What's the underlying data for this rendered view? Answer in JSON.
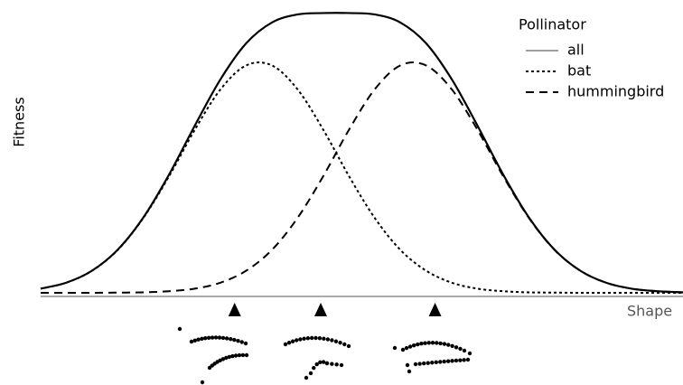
{
  "chart_data": {
    "type": "line",
    "y_label": "Fitness",
    "x_label": "Shape",
    "legend_title": "Pollinator",
    "x": [
      0,
      4,
      8,
      12,
      16,
      20,
      24,
      28,
      32,
      36,
      40,
      44,
      48,
      52,
      56,
      60,
      64,
      68,
      72,
      76,
      80,
      84,
      88,
      92,
      96,
      100
    ],
    "series": [
      {
        "name": "all",
        "color": "#000000",
        "dash": "solid",
        "values": [
          0.018,
          0.044,
          0.096,
          0.187,
          0.327,
          0.513,
          0.725,
          0.926,
          1.082,
          1.172,
          1.207,
          1.213,
          1.213,
          1.207,
          1.172,
          1.082,
          0.926,
          0.725,
          0.513,
          0.327,
          0.187,
          0.096,
          0.044,
          0.018,
          0.007,
          0.002
        ]
      },
      {
        "name": "bat",
        "color": "#000000",
        "dash": "dotted",
        "values": [
          0.018,
          0.044,
          0.096,
          0.186,
          0.325,
          0.506,
          0.707,
          0.882,
          0.986,
          0.986,
          0.882,
          0.707,
          0.506,
          0.325,
          0.186,
          0.096,
          0.044,
          0.018,
          0.007,
          0.002,
          0.001,
          0.0,
          0.0,
          0.0,
          0.0,
          0.0
        ]
      },
      {
        "name": "hummingbird",
        "color": "#000000",
        "dash": "dashed",
        "values": [
          0.0,
          0.0,
          0.0,
          0.001,
          0.002,
          0.007,
          0.018,
          0.044,
          0.096,
          0.186,
          0.325,
          0.506,
          0.707,
          0.882,
          0.986,
          0.986,
          0.882,
          0.707,
          0.506,
          0.325,
          0.186,
          0.096,
          0.044,
          0.018,
          0.007,
          0.002
        ]
      }
    ],
    "markers": [
      30.2,
      43.6,
      61.4
    ],
    "xlim": [
      0,
      100
    ],
    "ylim": [
      0,
      1.25
    ],
    "legend": "upper right",
    "grid": false
  }
}
